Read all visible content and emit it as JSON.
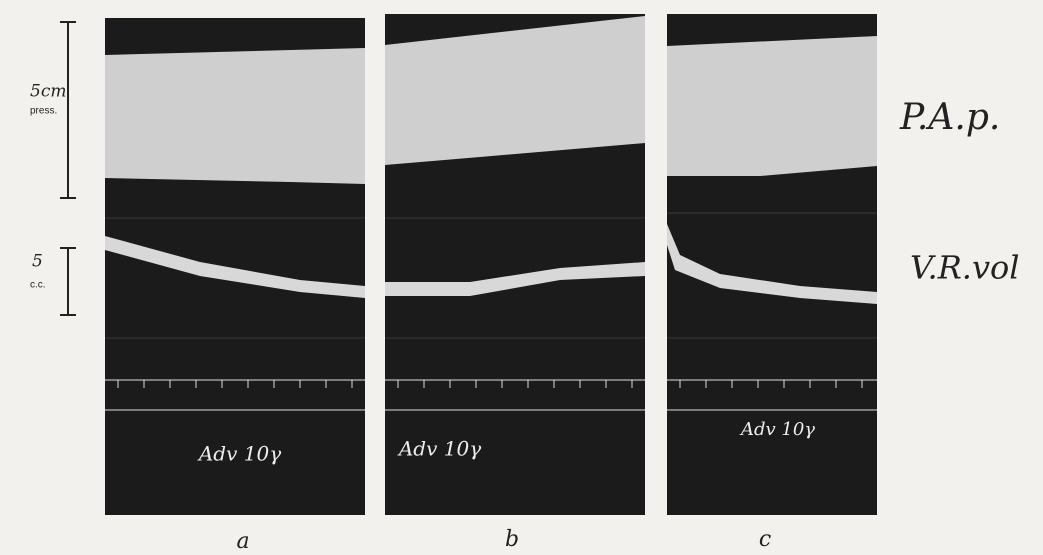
{
  "scale_bars": [
    {
      "label": "5cm",
      "sublabel": "press."
    },
    {
      "label": "5",
      "sublabel": "c.c."
    }
  ],
  "trace_labels": [
    "P.A.p.",
    "V.R.vol"
  ],
  "panels": [
    {
      "annotation": "Adv 10γ",
      "label": "a"
    },
    {
      "annotation": "Adv 10γ",
      "label": "b"
    },
    {
      "annotation": "Adv 10γ",
      "label": "c"
    }
  ]
}
